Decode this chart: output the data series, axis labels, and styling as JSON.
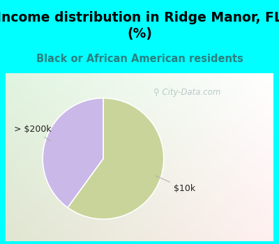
{
  "title": "Income distribution in Ridge Manor, FL\n(%)",
  "subtitle": "Black or African American residents",
  "slices": [
    {
      "label": "$10k",
      "value": 60,
      "color": "#c8d49a"
    },
    {
      "label": "> $200k",
      "value": 40,
      "color": "#c9b8e8"
    }
  ],
  "title_bg_color": "#00FFFF",
  "chart_panel_color": "#f0faf5",
  "title_fontsize": 13.5,
  "subtitle_fontsize": 10.5,
  "subtitle_color": "#2a8080",
  "watermark": "City-Data.com",
  "startangle": 90,
  "label_fontsize": 9,
  "label_color": "#222222"
}
